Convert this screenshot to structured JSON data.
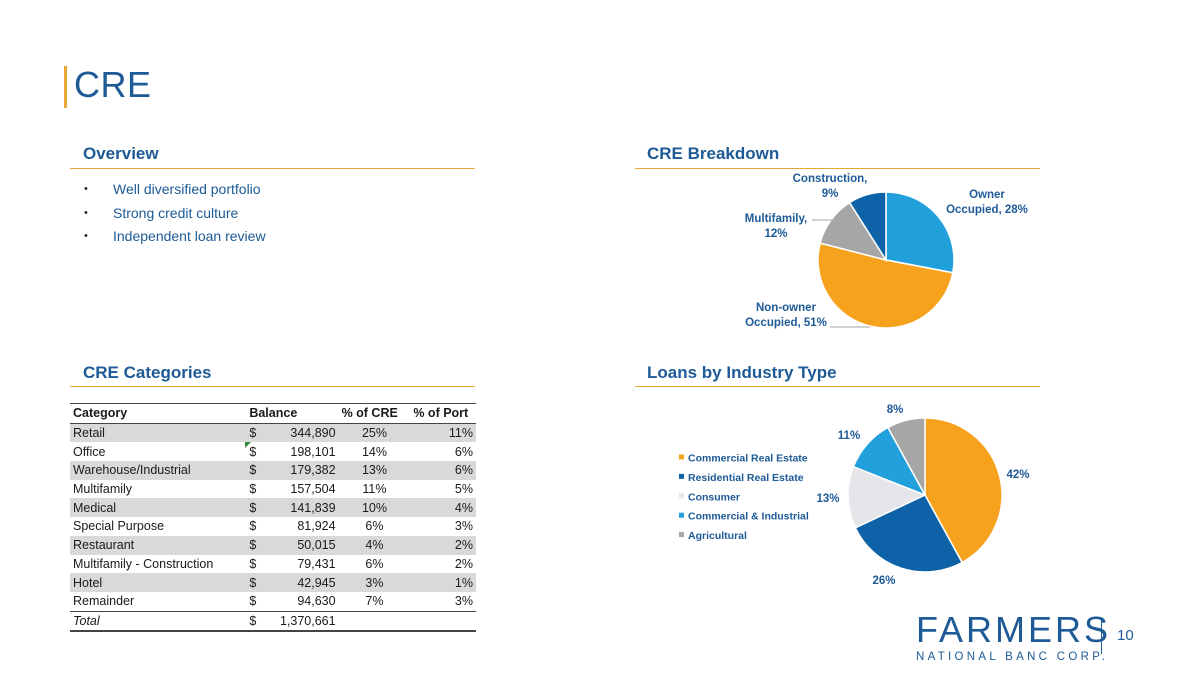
{
  "page": {
    "title": "CRE",
    "number": "10"
  },
  "overview": {
    "heading": "Overview",
    "bullets": [
      "Well diversified portfolio",
      "Strong credit culture",
      "Independent loan review"
    ]
  },
  "breakdown": {
    "heading": "CRE Breakdown"
  },
  "categories": {
    "heading": "CRE Categories",
    "columns": [
      "Category",
      "Balance",
      "% of CRE",
      "% of Port"
    ],
    "rows": [
      {
        "category": "Retail",
        "dollar": "$",
        "balance": "344,890",
        "pct_cre": "25%",
        "pct_port": "11%"
      },
      {
        "category": "Office",
        "dollar": "$",
        "balance": "198,101",
        "pct_cre": "14%",
        "pct_port": "6%"
      },
      {
        "category": "Warehouse/Industrial",
        "dollar": "$",
        "balance": "179,382",
        "pct_cre": "13%",
        "pct_port": "6%"
      },
      {
        "category": "Multifamily",
        "dollar": "$",
        "balance": "157,504",
        "pct_cre": "11%",
        "pct_port": "5%"
      },
      {
        "category": "Medical",
        "dollar": "$",
        "balance": "141,839",
        "pct_cre": "10%",
        "pct_port": "4%"
      },
      {
        "category": "Special Purpose",
        "dollar": "$",
        "balance": "81,924",
        "pct_cre": "6%",
        "pct_port": "3%"
      },
      {
        "category": "Restaurant",
        "dollar": "$",
        "balance": "50,015",
        "pct_cre": "4%",
        "pct_port": "2%"
      },
      {
        "category": "Multifamily - Construction",
        "dollar": "$",
        "balance": "79,431",
        "pct_cre": "6%",
        "pct_port": "2%"
      },
      {
        "category": "Hotel",
        "dollar": "$",
        "balance": "42,945",
        "pct_cre": "3%",
        "pct_port": "1%"
      },
      {
        "category": "Remainder",
        "dollar": "$",
        "balance": "94,630",
        "pct_cre": "7%",
        "pct_port": "3%"
      }
    ],
    "total": {
      "category": "Total",
      "dollar": "$",
      "balance": "1,370,661"
    }
  },
  "industry": {
    "heading": "Loans by Industry Type"
  },
  "logo": {
    "main": "FARMERS",
    "sub": "NATIONAL BANC CORP."
  },
  "chart_data": [
    {
      "type": "pie",
      "title": "CRE Breakdown",
      "slices": [
        {
          "name": "Owner Occupied",
          "value": 28,
          "label_lines": [
            "Owner",
            "Occupied, 28%"
          ],
          "color": "#22a0dc"
        },
        {
          "name": "Non-owner Occupied",
          "value": 51,
          "label_lines": [
            "Non-owner",
            "Occupied, 51%"
          ],
          "color": "#f6a21c"
        },
        {
          "name": "Multifamily",
          "value": 12,
          "label_lines": [
            "Multifamily,",
            "12%"
          ],
          "color": "#a6a6a6"
        },
        {
          "name": "Construction",
          "value": 9,
          "label_lines": [
            "Construction,",
            "9%"
          ],
          "color": "#0e63a8"
        }
      ]
    },
    {
      "type": "pie",
      "title": "Loans by Industry Type",
      "legend_position": "left",
      "slices": [
        {
          "name": "Commercial Real Estate",
          "value": 42,
          "label": "42%",
          "color": "#f6a21c"
        },
        {
          "name": "Residential Real Estate",
          "value": 26,
          "label": "26%",
          "color": "#0e63a8"
        },
        {
          "name": "Consumer",
          "value": 13,
          "label": "13%",
          "color": "#e6e6ea"
        },
        {
          "name": "Commercial & Industrial",
          "value": 11,
          "label": "11%",
          "color": "#22a0dc"
        },
        {
          "name": "Agricultural",
          "value": 8,
          "label": "8%",
          "color": "#a6a6a6"
        }
      ]
    }
  ]
}
